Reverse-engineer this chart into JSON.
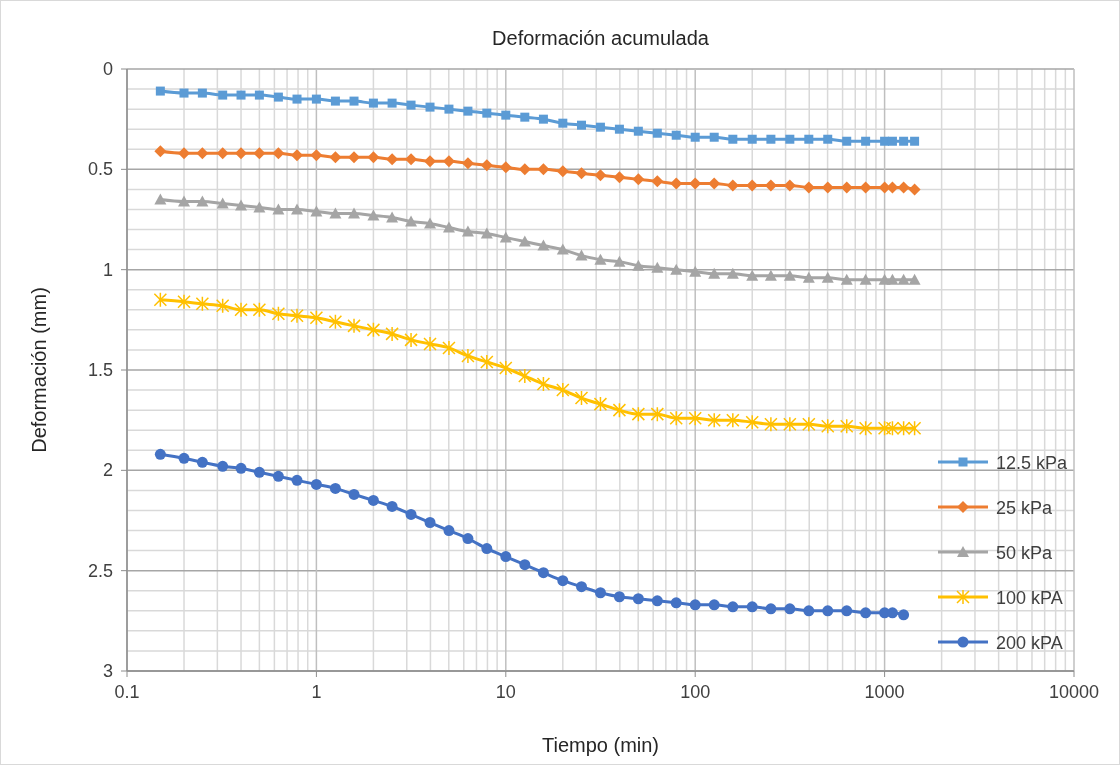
{
  "chart_data": {
    "type": "line",
    "title": "Deformación acumulada",
    "xlabel": "Tiempo (min)",
    "ylabel": "Deformación (mm)",
    "log": "x",
    "xlim": [
      0.1,
      10000
    ],
    "xticks": [
      0.1,
      1,
      10,
      100,
      1000,
      10000
    ],
    "ylim": [
      3,
      0
    ],
    "yticks": [
      0,
      0.5,
      1,
      1.5,
      2,
      2.5,
      3
    ],
    "grid": true,
    "legend": "right",
    "line_style": "solid",
    "x": [
      0.15,
      0.2,
      0.25,
      0.32,
      0.4,
      0.5,
      0.63,
      0.79,
      1,
      1.26,
      1.58,
      2,
      2.51,
      3.16,
      3.98,
      5.01,
      6.31,
      7.94,
      10,
      12.6,
      15.8,
      20,
      25.1,
      31.6,
      39.8,
      50.1,
      63.1,
      79.4,
      100,
      126,
      158,
      200,
      251,
      316,
      398,
      501,
      631,
      794,
      1000,
      1100,
      1260,
      1440
    ],
    "series": [
      {
        "name": "12.5 kPa",
        "color": "#5b9bd5",
        "marker": "square",
        "values": [
          0.11,
          0.12,
          0.12,
          0.13,
          0.13,
          0.13,
          0.14,
          0.15,
          0.15,
          0.16,
          0.16,
          0.17,
          0.17,
          0.18,
          0.19,
          0.2,
          0.21,
          0.22,
          0.23,
          0.24,
          0.25,
          0.27,
          0.28,
          0.29,
          0.3,
          0.31,
          0.32,
          0.33,
          0.34,
          0.34,
          0.35,
          0.35,
          0.35,
          0.35,
          0.35,
          0.35,
          0.36,
          0.36,
          0.36,
          0.36,
          0.36,
          0.36
        ]
      },
      {
        "name": "25 kPa",
        "color": "#ed7d31",
        "marker": "diamond",
        "values": [
          0.41,
          0.42,
          0.42,
          0.42,
          0.42,
          0.42,
          0.42,
          0.43,
          0.43,
          0.44,
          0.44,
          0.44,
          0.45,
          0.45,
          0.46,
          0.46,
          0.47,
          0.48,
          0.49,
          0.5,
          0.5,
          0.51,
          0.52,
          0.53,
          0.54,
          0.55,
          0.56,
          0.57,
          0.57,
          0.57,
          0.58,
          0.58,
          0.58,
          0.58,
          0.59,
          0.59,
          0.59,
          0.59,
          0.59,
          0.59,
          0.59,
          0.6
        ]
      },
      {
        "name": "50 kPa",
        "color": "#a5a5a5",
        "marker": "triangle",
        "values": [
          0.65,
          0.66,
          0.66,
          0.67,
          0.68,
          0.69,
          0.7,
          0.7,
          0.71,
          0.72,
          0.72,
          0.73,
          0.74,
          0.76,
          0.77,
          0.79,
          0.81,
          0.82,
          0.84,
          0.86,
          0.88,
          0.9,
          0.93,
          0.95,
          0.96,
          0.98,
          0.99,
          1,
          1.01,
          1.02,
          1.02,
          1.03,
          1.03,
          1.03,
          1.04,
          1.04,
          1.05,
          1.05,
          1.05,
          1.05,
          1.05,
          1.05
        ]
      },
      {
        "name": "100 kPA",
        "color": "#ffc000",
        "marker": "cross",
        "values": [
          1.15,
          1.16,
          1.17,
          1.18,
          1.2,
          1.2,
          1.22,
          1.23,
          1.24,
          1.26,
          1.28,
          1.3,
          1.32,
          1.35,
          1.37,
          1.39,
          1.43,
          1.46,
          1.49,
          1.53,
          1.57,
          1.6,
          1.64,
          1.67,
          1.7,
          1.72,
          1.72,
          1.74,
          1.74,
          1.75,
          1.75,
          1.76,
          1.77,
          1.77,
          1.77,
          1.78,
          1.78,
          1.79,
          1.79,
          1.79,
          1.79,
          1.79
        ]
      },
      {
        "name": "200 kPA",
        "color": "#4472c4",
        "marker": "circle",
        "x": [
          0.15,
          0.2,
          0.25,
          0.32,
          0.4,
          0.5,
          0.63,
          0.79,
          1,
          1.26,
          1.58,
          2,
          2.51,
          3.16,
          3.98,
          5.01,
          6.31,
          7.94,
          10,
          12.6,
          15.8,
          20,
          25.1,
          31.6,
          39.8,
          50.1,
          63.1,
          79.4,
          100,
          126,
          158,
          200,
          251,
          316,
          398,
          501,
          631,
          794,
          1000,
          1100,
          1260
        ],
        "values": [
          1.92,
          1.94,
          1.96,
          1.98,
          1.99,
          2.01,
          2.03,
          2.05,
          2.07,
          2.09,
          2.12,
          2.15,
          2.18,
          2.22,
          2.26,
          2.3,
          2.34,
          2.39,
          2.43,
          2.47,
          2.51,
          2.55,
          2.58,
          2.61,
          2.63,
          2.64,
          2.65,
          2.66,
          2.67,
          2.67,
          2.68,
          2.68,
          2.69,
          2.69,
          2.7,
          2.7,
          2.7,
          2.71,
          2.71,
          2.71,
          2.72
        ]
      }
    ]
  }
}
